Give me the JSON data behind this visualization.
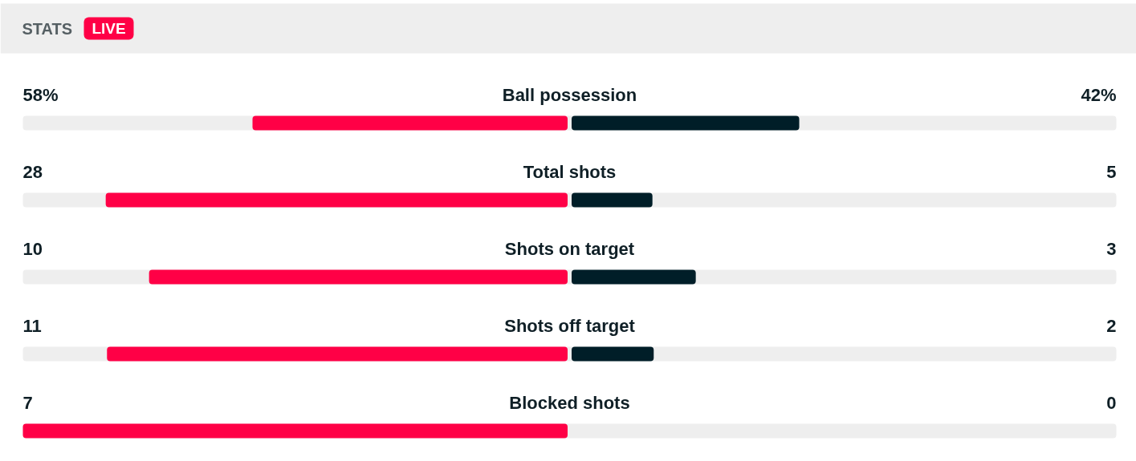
{
  "chart_data": {
    "type": "other",
    "title": "STATS",
    "annotations": [
      "LIVE"
    ],
    "categories": [
      "Ball possession",
      "Total shots",
      "Shots on target",
      "Shots off target",
      "Blocked shots"
    ],
    "series": [
      {
        "color": "#ff0046",
        "values": [
          58,
          28,
          10,
          11,
          7
        ],
        "value_labels": [
          "58%",
          "28",
          "10",
          "11",
          "7"
        ]
      },
      {
        "color": "#001e28",
        "values": [
          42,
          5,
          3,
          2,
          0
        ],
        "value_labels": [
          "42%",
          "5",
          "3",
          "2",
          "0"
        ]
      }
    ]
  }
}
